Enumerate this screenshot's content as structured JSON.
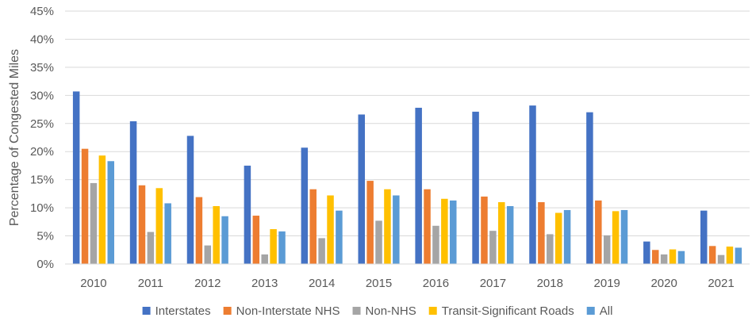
{
  "chart_data": {
    "type": "bar",
    "title": "",
    "xlabel": "",
    "ylabel": "Percentage of Congested Miles",
    "ylim": [
      0,
      45
    ],
    "yticks": [
      0,
      5,
      10,
      15,
      20,
      25,
      30,
      35,
      40,
      45
    ],
    "ytick_suffix": "%",
    "grid": true,
    "legend_position": "bottom",
    "categories": [
      "2010",
      "2011",
      "2012",
      "2013",
      "2014",
      "2015",
      "2016",
      "2017",
      "2018",
      "2019",
      "2020",
      "2021"
    ],
    "series": [
      {
        "name": "Interstates",
        "color": "#4472C4",
        "values": [
          30.7,
          25.4,
          22.8,
          17.5,
          20.7,
          26.6,
          27.8,
          27.1,
          28.2,
          27.0,
          4.0,
          9.5
        ]
      },
      {
        "name": "Non-Interstate NHS",
        "color": "#ED7D31",
        "values": [
          20.5,
          14.0,
          11.9,
          8.6,
          13.3,
          14.8,
          13.3,
          12.0,
          11.0,
          11.3,
          2.5,
          3.2
        ]
      },
      {
        "name": "Non-NHS",
        "color": "#A5A5A5",
        "values": [
          14.4,
          5.7,
          3.3,
          1.7,
          4.6,
          7.7,
          6.8,
          5.9,
          5.3,
          5.1,
          1.7,
          1.6
        ]
      },
      {
        "name": "Transit-Significant Roads",
        "color": "#FFC000",
        "values": [
          19.3,
          13.5,
          10.3,
          6.2,
          12.2,
          13.3,
          11.6,
          11.0,
          9.1,
          9.4,
          2.6,
          3.1
        ]
      },
      {
        "name": "All",
        "color": "#5B9BD5",
        "values": [
          18.3,
          10.8,
          8.5,
          5.8,
          9.5,
          12.2,
          11.3,
          10.3,
          9.6,
          9.6,
          2.3,
          2.9
        ]
      }
    ]
  }
}
